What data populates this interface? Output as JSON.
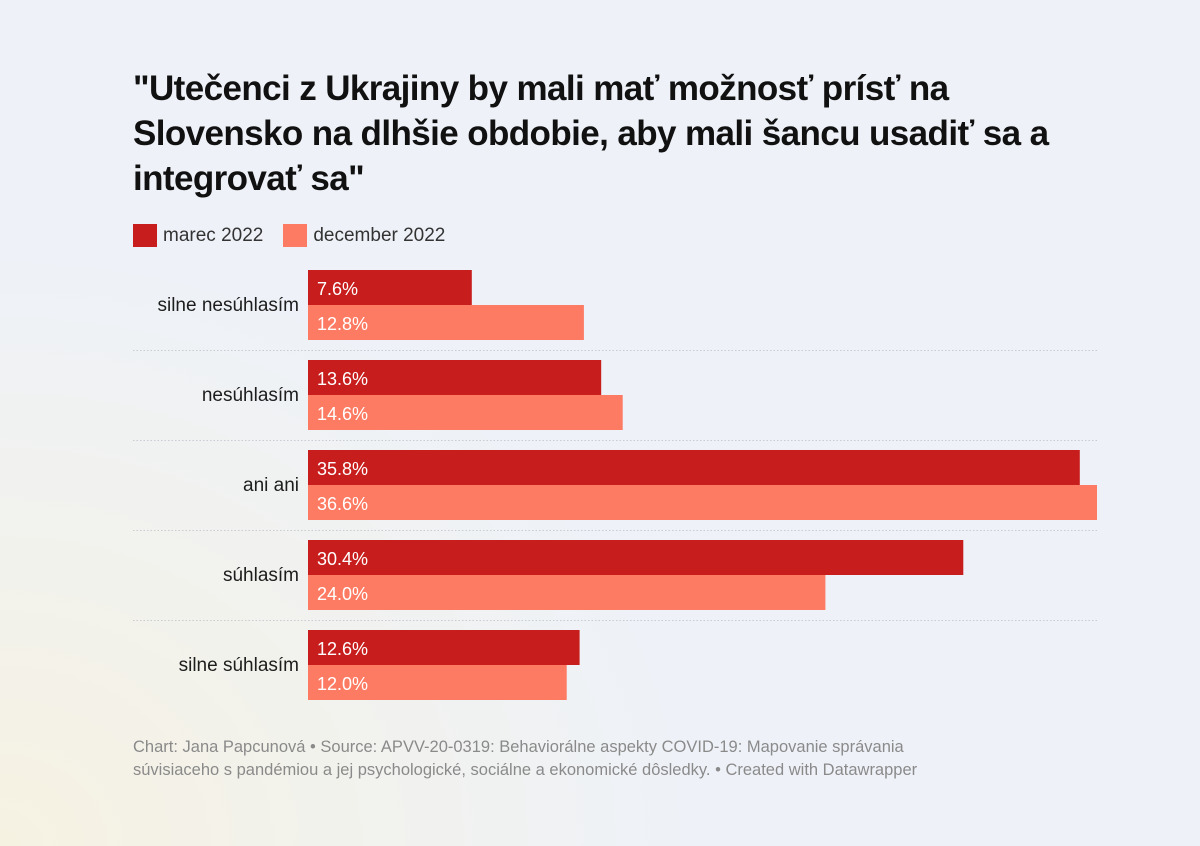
{
  "chart_data": {
    "type": "bar",
    "orientation": "horizontal",
    "title": "\"Utečenci z Ukrajiny by mali mať možnosť prísť na Slovensko na dlhšie obdobie, aby mali šancu usadiť sa a integrovať sa\"",
    "xlabel": "",
    "ylabel": "",
    "xlim": [
      0,
      36.6
    ],
    "grid": false,
    "legend_position": "top-left",
    "value_suffix": "%",
    "categories": [
      "silne nesúhlasím",
      "nesúhlasím",
      "ani ani",
      "súhlasím",
      "silne súhlasím"
    ],
    "series": [
      {
        "name": "marec 2022",
        "color": "#c71e1d",
        "values": [
          7.6,
          13.6,
          35.8,
          30.4,
          12.6
        ]
      },
      {
        "name": "december 2022",
        "color": "#fd7b63",
        "values": [
          12.8,
          14.6,
          36.6,
          24.0,
          12.0
        ]
      }
    ]
  },
  "footer": {
    "line1": "Chart: Jana Papcunová • Source: APVV-20-0319: Behaviorálne aspekty COVID-19: Mapovanie správania",
    "line2": "súvisiaceho s pandémiou a jej psychologické, sociálne a ekonomické dôsledky. • Created with Datawrapper"
  }
}
